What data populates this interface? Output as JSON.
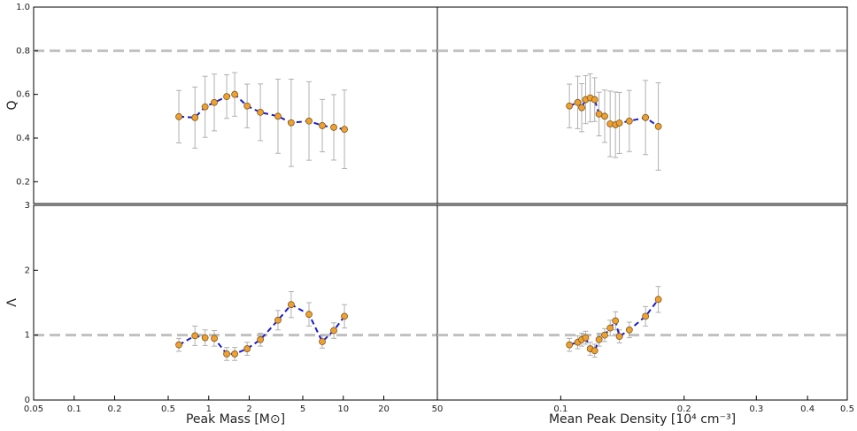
{
  "chart_data": [
    {
      "type": "errorbar",
      "ylabel": "Q",
      "xscale": "log",
      "xlim": [
        0.05,
        50
      ],
      "ylim": [
        0.1,
        1.0
      ],
      "yticks": [
        0.2,
        0.4,
        0.6,
        0.8,
        {
          "value": 1,
          "label": "1.0"
        }
      ],
      "hline": 0.8,
      "x": [
        0.6,
        0.79,
        0.94,
        1.1,
        1.36,
        1.56,
        1.93,
        2.42,
        3.27,
        4.1,
        5.56,
        6.98,
        8.5,
        10.2
      ],
      "values": [
        0.498,
        0.494,
        0.543,
        0.563,
        0.59,
        0.6,
        0.547,
        0.518,
        0.5,
        0.47,
        0.478,
        0.457,
        0.449,
        0.44
      ],
      "errors": [
        0.12,
        0.14,
        0.14,
        0.13,
        0.1,
        0.1,
        0.1,
        0.13,
        0.17,
        0.2,
        0.18,
        0.12,
        0.15,
        0.18
      ],
      "color": "#f0a030",
      "line_color": "#1a1ad0",
      "error_color": "#b0b0b0",
      "hline_color": "#c0c0c0"
    },
    {
      "type": "errorbar",
      "xscale": "log",
      "xlim": [
        0.05,
        0.5
      ],
      "ylim": [
        0.1,
        1.0
      ],
      "hline": 0.8,
      "x": [
        0.105,
        0.11,
        0.1125,
        0.115,
        0.118,
        0.121,
        0.124,
        0.128,
        0.132,
        0.136,
        0.139,
        0.147,
        0.161,
        0.173
      ],
      "values": [
        0.547,
        0.563,
        0.539,
        0.576,
        0.584,
        0.576,
        0.51,
        0.5,
        0.465,
        0.461,
        0.469,
        0.478,
        0.494,
        0.453
      ],
      "errors": [
        0.1,
        0.12,
        0.11,
        0.11,
        0.11,
        0.1,
        0.1,
        0.12,
        0.15,
        0.15,
        0.14,
        0.14,
        0.17,
        0.2
      ],
      "color": "#f0a030",
      "line_color": "#1a1ad0",
      "error_color": "#b0b0b0",
      "hline_color": "#c0c0c0"
    },
    {
      "type": "errorbar",
      "ylabel": "Λ",
      "xlabel": "Peak Mass [M⊙]",
      "xscale": "log",
      "xlim": [
        0.05,
        50
      ],
      "ylim": [
        0,
        3
      ],
      "xticks": [
        0.05,
        0.1,
        0.2,
        0.5,
        1,
        2,
        5,
        10,
        20,
        50
      ],
      "yticks": [
        0,
        1,
        2,
        3
      ],
      "hline": 1,
      "x": [
        0.6,
        0.79,
        0.94,
        1.1,
        1.36,
        1.56,
        1.93,
        2.42,
        3.27,
        4.1,
        5.56,
        6.98,
        8.5,
        10.2
      ],
      "values": [
        0.85,
        0.99,
        0.96,
        0.95,
        0.71,
        0.71,
        0.79,
        0.93,
        1.23,
        1.47,
        1.32,
        0.9,
        1.07,
        1.29
      ],
      "errors": [
        0.1,
        0.15,
        0.12,
        0.12,
        0.1,
        0.1,
        0.1,
        0.1,
        0.15,
        0.2,
        0.18,
        0.1,
        0.12,
        0.18
      ],
      "color": "#f0a030",
      "line_color": "#1a1ad0",
      "error_color": "#b0b0b0",
      "hline_color": "#c0c0c0"
    },
    {
      "type": "errorbar",
      "xlabel": "Mean Peak Density [10⁴ cm⁻³]",
      "xscale": "log",
      "xlim": [
        0.05,
        0.5
      ],
      "ylim": [
        0,
        3
      ],
      "xticks": [
        0.1,
        0.2,
        0.3,
        0.4,
        0.5
      ],
      "hline": 1,
      "x": [
        0.105,
        0.11,
        0.1125,
        0.115,
        0.118,
        0.121,
        0.124,
        0.128,
        0.132,
        0.136,
        0.139,
        0.147,
        0.161,
        0.173
      ],
      "values": [
        0.85,
        0.89,
        0.93,
        0.96,
        0.79,
        0.76,
        0.93,
        1.0,
        1.11,
        1.22,
        0.98,
        1.08,
        1.29,
        1.55
      ],
      "errors": [
        0.1,
        0.1,
        0.1,
        0.1,
        0.1,
        0.1,
        0.1,
        0.1,
        0.12,
        0.14,
        0.1,
        0.12,
        0.15,
        0.2
      ],
      "color": "#f0a030",
      "line_color": "#1a1ad0",
      "error_color": "#b0b0b0",
      "hline_color": "#c0c0c0"
    }
  ]
}
